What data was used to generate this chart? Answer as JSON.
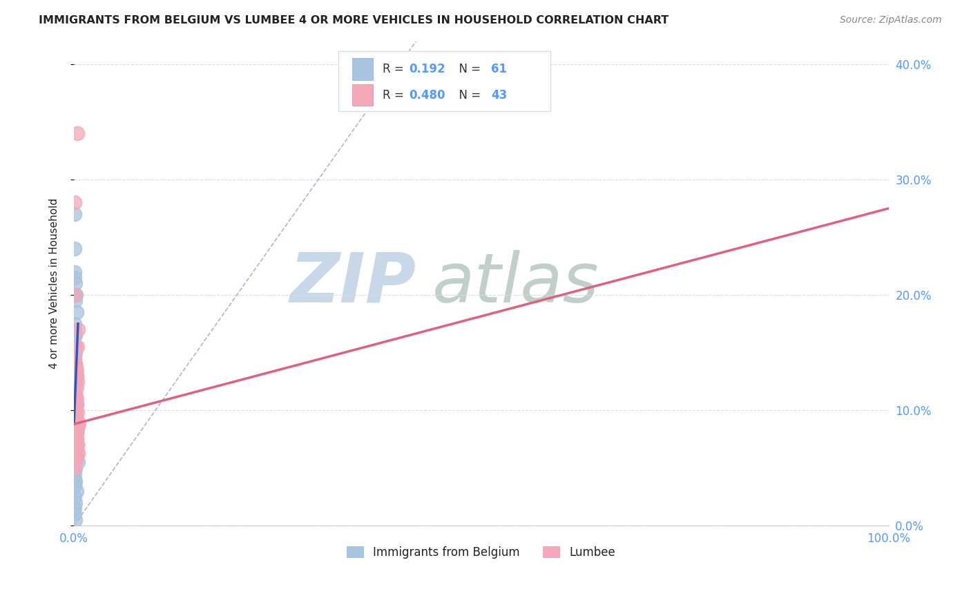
{
  "title": "IMMIGRANTS FROM BELGIUM VS LUMBEE 4 OR MORE VEHICLES IN HOUSEHOLD CORRELATION CHART",
  "source": "Source: ZipAtlas.com",
  "ylabel": "4 or more Vehicles in Household",
  "xlim": [
    0,
    1.0
  ],
  "ylim": [
    0,
    0.42
  ],
  "xticks": [
    0.0,
    0.1,
    0.2,
    0.3,
    0.4,
    0.5,
    0.6,
    0.7,
    0.8,
    0.9,
    1.0
  ],
  "xticklabels": [
    "0.0%",
    "",
    "",
    "",
    "",
    "",
    "",
    "",
    "",
    "",
    "100.0%"
  ],
  "yticks_right": [
    0.0,
    0.1,
    0.2,
    0.3,
    0.4
  ],
  "yticklabels_right": [
    "0.0%",
    "10.0%",
    "20.0%",
    "30.0%",
    "40.0%"
  ],
  "legend_label1": "Immigrants from Belgium",
  "legend_label2": "Lumbee",
  "blue_scatter_x": [
    0.0005,
    0.0008,
    0.001,
    0.0012,
    0.0015,
    0.002,
    0.0018,
    0.0022,
    0.003,
    0.001,
    0.0008,
    0.0015,
    0.001,
    0.0018,
    0.002,
    0.001,
    0.0009,
    0.0016,
    0.002,
    0.001,
    0.0008,
    0.001,
    0.0015,
    0.001,
    0.0009,
    0.002,
    0.0015,
    0.001,
    0.001,
    0.003,
    0.0015,
    0.001,
    0.002,
    0.001,
    0.0015,
    0.001,
    0.001,
    0.004,
    0.001,
    0.0018,
    0.002,
    0.003,
    0.001,
    0.0015,
    0.001,
    0.002,
    0.001,
    0.0015,
    0.001,
    0.005,
    0.0015,
    0.001,
    0.001,
    0.002,
    0.001,
    0.003,
    0.001,
    0.0015,
    0.001,
    0.001,
    0.0015
  ],
  "blue_scatter_y": [
    0.27,
    0.24,
    0.22,
    0.215,
    0.21,
    0.2,
    0.195,
    0.2,
    0.185,
    0.175,
    0.17,
    0.165,
    0.165,
    0.155,
    0.15,
    0.145,
    0.14,
    0.138,
    0.135,
    0.13,
    0.128,
    0.125,
    0.123,
    0.12,
    0.118,
    0.115,
    0.112,
    0.11,
    0.108,
    0.105,
    0.103,
    0.1,
    0.098,
    0.095,
    0.093,
    0.09,
    0.088,
    0.085,
    0.083,
    0.08,
    0.078,
    0.075,
    0.073,
    0.07,
    0.068,
    0.065,
    0.063,
    0.06,
    0.058,
    0.055,
    0.05,
    0.045,
    0.04,
    0.038,
    0.035,
    0.03,
    0.025,
    0.02,
    0.015,
    0.01,
    0.005
  ],
  "pink_scatter_x": [
    0.001,
    0.0015,
    0.002,
    0.004,
    0.001,
    0.002,
    0.003,
    0.002,
    0.005,
    0.004,
    0.002,
    0.003,
    0.002,
    0.003,
    0.002,
    0.004,
    0.003,
    0.002,
    0.003,
    0.001,
    0.003,
    0.002,
    0.004,
    0.002,
    0.005,
    0.004,
    0.003,
    0.003,
    0.006,
    0.003,
    0.003,
    0.004,
    0.003,
    0.005,
    0.003,
    0.002,
    0.001,
    0.003,
    0.002,
    0.003,
    0.004,
    0.002,
    0.003
  ],
  "pink_scatter_y": [
    0.28,
    0.2,
    0.155,
    0.34,
    0.145,
    0.14,
    0.135,
    0.14,
    0.17,
    0.155,
    0.13,
    0.13,
    0.138,
    0.13,
    0.128,
    0.125,
    0.12,
    0.115,
    0.11,
    0.108,
    0.105,
    0.1,
    0.098,
    0.095,
    0.09,
    0.085,
    0.08,
    0.082,
    0.088,
    0.082,
    0.075,
    0.07,
    0.068,
    0.063,
    0.06,
    0.055,
    0.05,
    0.08,
    0.073,
    0.065,
    0.07,
    0.07,
    0.09
  ],
  "blue_line_x": [
    0.0,
    0.005
  ],
  "blue_line_y": [
    0.088,
    0.175
  ],
  "pink_line_x": [
    0.0,
    1.0
  ],
  "pink_line_y": [
    0.088,
    0.275
  ],
  "diag_line_x": [
    0.0,
    0.42
  ],
  "diag_line_y": [
    0.0,
    0.42
  ],
  "bg_color": "#ffffff",
  "scatter_blue_color": "#a8c4e0",
  "scatter_pink_color": "#f4a8b8",
  "line_blue_color": "#3355bb",
  "line_pink_color": "#e06080",
  "diag_color": "#aaaacc",
  "title_color": "#222222",
  "watermark_zip_color": "#c8d8e8",
  "watermark_atlas_color": "#c0d0c8",
  "source_color": "#888888",
  "tick_color": "#5599ff",
  "grid_color": "#dddddd",
  "legend_r1": "0.192",
  "legend_n1": "61",
  "legend_r2": "0.480",
  "legend_n2": "43"
}
